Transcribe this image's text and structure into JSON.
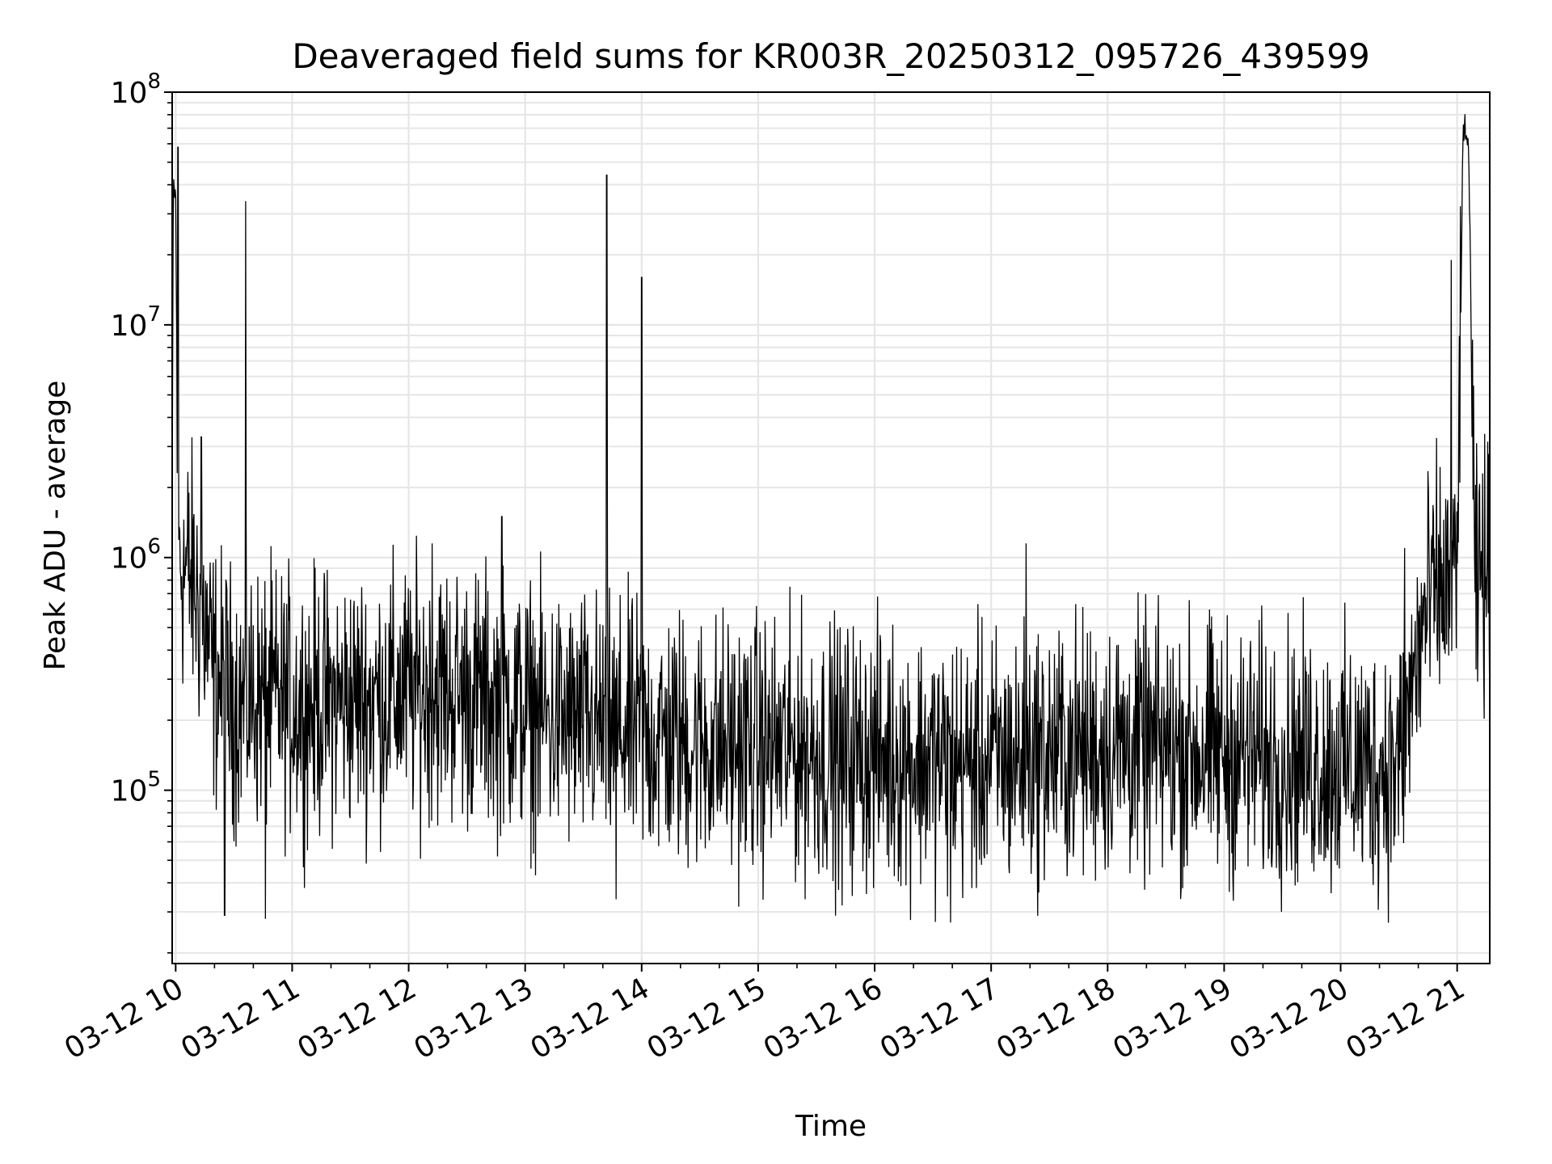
{
  "chart_data": {
    "type": "line",
    "title": "Deaveraged field sums for KR003R_20250312_095726_439599",
    "xlabel": "Time",
    "ylabel": "Peak ADU - average",
    "yscale": "log",
    "ylim": [
      18000,
      100000000
    ],
    "xlim_hours": [
      9.97,
      21.28
    ],
    "grid": true,
    "x_ticks": [
      {
        "hour": 10,
        "label": "03-12 10"
      },
      {
        "hour": 11,
        "label": "03-12 11"
      },
      {
        "hour": 12,
        "label": "03-12 12"
      },
      {
        "hour": 13,
        "label": "03-12 13"
      },
      {
        "hour": 14,
        "label": "03-12 14"
      },
      {
        "hour": 15,
        "label": "03-12 15"
      },
      {
        "hour": 16,
        "label": "03-12 16"
      },
      {
        "hour": 17,
        "label": "03-12 17"
      },
      {
        "hour": 18,
        "label": "03-12 18"
      },
      {
        "hour": 19,
        "label": "03-12 19"
      },
      {
        "hour": 20,
        "label": "03-12 20"
      },
      {
        "hour": 21,
        "label": "03-12 21"
      }
    ],
    "y_ticks": [
      {
        "value": 100000,
        "base": "10",
        "exp": "5"
      },
      {
        "value": 1000000,
        "base": "10",
        "exp": "6"
      },
      {
        "value": 10000000,
        "base": "10",
        "exp": "7"
      },
      {
        "value": 100000000,
        "base": "10",
        "exp": "8"
      }
    ],
    "series": [
      {
        "name": "Peak ADU - average",
        "color": "#000000",
        "x_hours": [
          9.97,
          9.98,
          10.0,
          10.02,
          10.05,
          10.08,
          10.12,
          10.18,
          10.25,
          10.32,
          10.45,
          10.55,
          10.7,
          10.9,
          11.1,
          11.4,
          11.7,
          12.0,
          12.3,
          12.6,
          12.9,
          13.2,
          13.5,
          13.8,
          14.1,
          14.5,
          14.9,
          15.3,
          15.7,
          16.1,
          16.5,
          16.9,
          17.3,
          17.7,
          18.1,
          18.5,
          18.9,
          19.3,
          19.7,
          20.0,
          20.3,
          20.5,
          20.6,
          20.7,
          20.8,
          20.9,
          21.0,
          21.05,
          21.1,
          21.15,
          21.2,
          21.28
        ],
        "values": [
          1500000,
          40000000,
          35000000,
          1200000,
          950000,
          900000,
          850000,
          700000,
          500000,
          320000,
          260000,
          240000,
          250000,
          240000,
          230000,
          240000,
          250000,
          260000,
          270000,
          250000,
          230000,
          200000,
          190000,
          180000,
          170000,
          160000,
          155000,
          150000,
          145000,
          140000,
          135000,
          130000,
          140000,
          150000,
          155000,
          150000,
          145000,
          140000,
          135000,
          130000,
          125000,
          130000,
          250000,
          500000,
          700000,
          750000,
          800000,
          65000000,
          60000000,
          700000,
          800000,
          850000
        ],
        "noise_decades": 0.55,
        "spikes": [
          {
            "hour": 10.02,
            "value": 58000000
          },
          {
            "hour": 10.22,
            "value": 3300000
          },
          {
            "hour": 10.6,
            "value": 34000000
          },
          {
            "hour": 12.2,
            "value": 1150000
          },
          {
            "hour": 12.8,
            "value": 1500000
          },
          {
            "hour": 13.7,
            "value": 44000000
          },
          {
            "hour": 14.0,
            "value": 16000000
          },
          {
            "hour": 17.3,
            "value": 1150000
          },
          {
            "hour": 20.55,
            "value": 1100000
          },
          {
            "hour": 20.95,
            "value": 19000000
          },
          {
            "hour": 21.22,
            "value": 2300000
          }
        ],
        "dips": [
          {
            "hour": 10.42,
            "value": 29000
          },
          {
            "hour": 10.77,
            "value": 28000
          },
          {
            "hour": 16.65,
            "value": 27000
          },
          {
            "hour": 13.78,
            "value": 34000
          },
          {
            "hour": 15.72,
            "value": 32000
          }
        ]
      }
    ]
  }
}
